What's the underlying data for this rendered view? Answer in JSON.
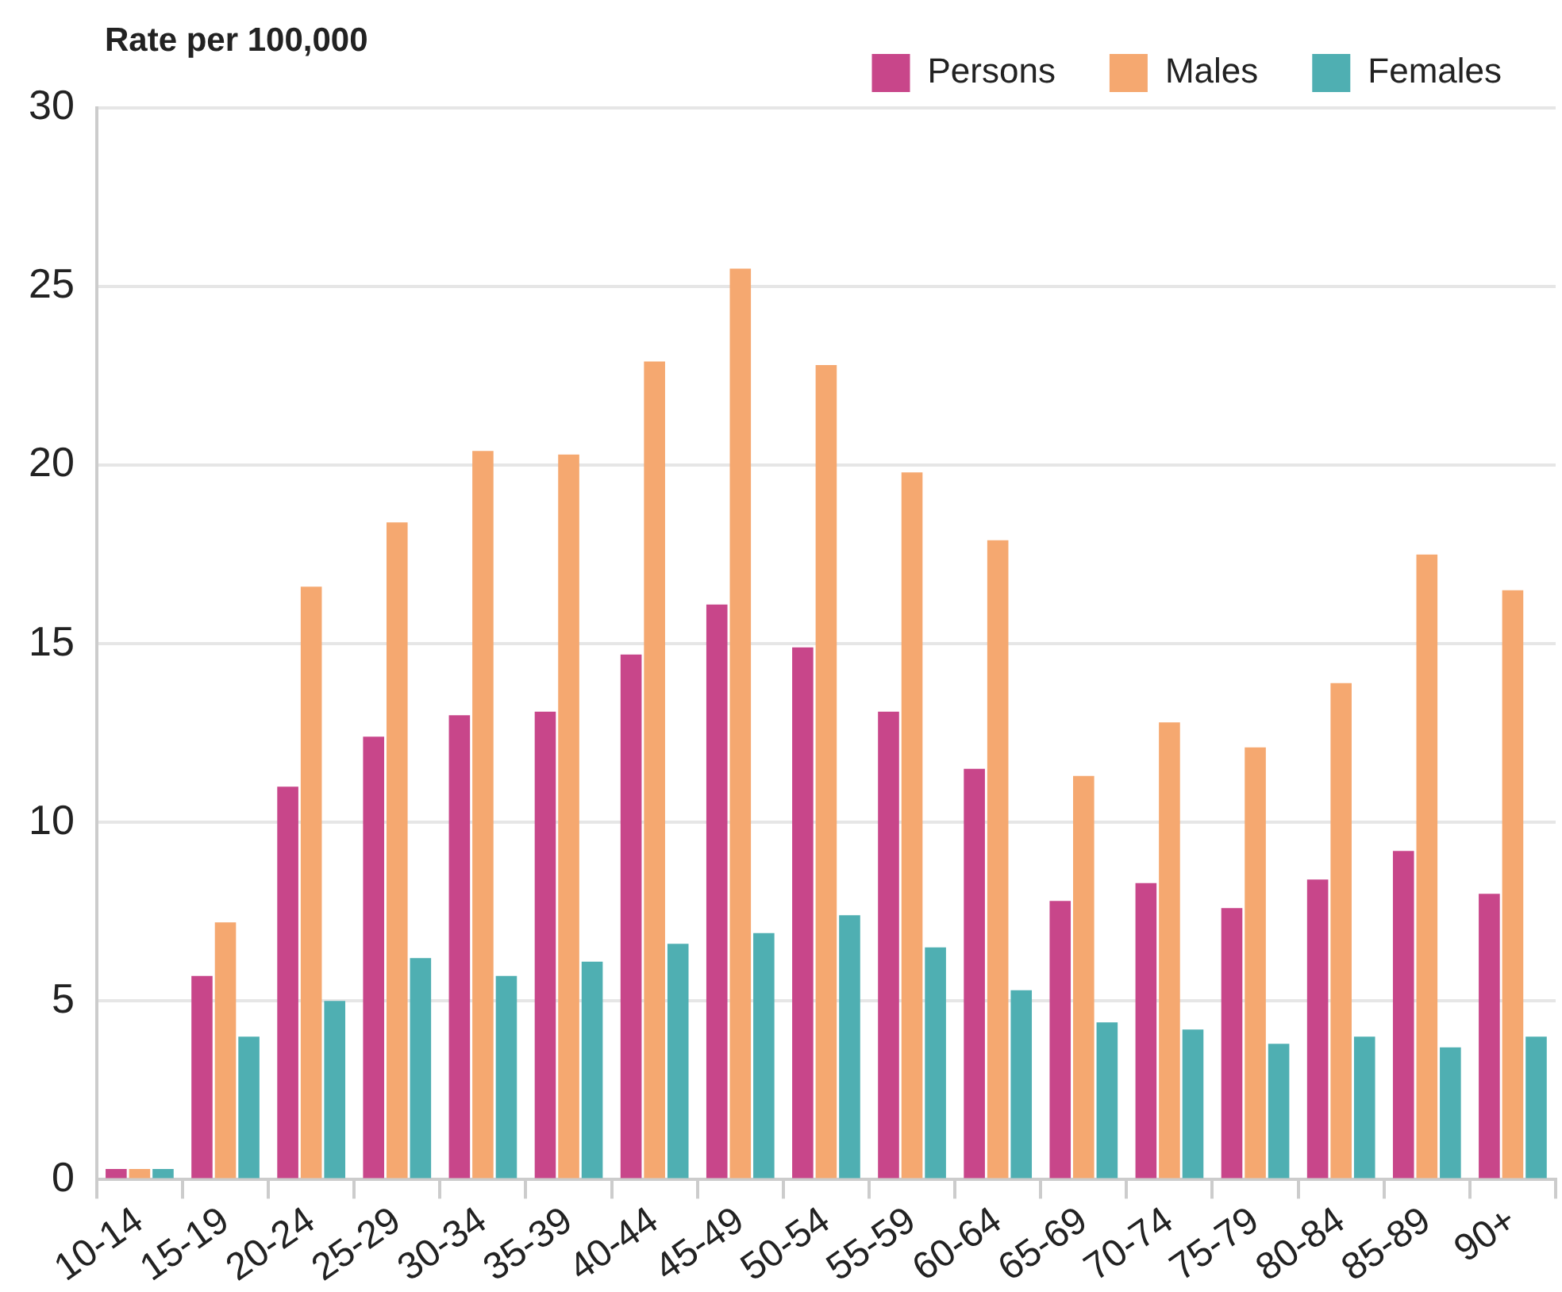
{
  "chart_data": {
    "type": "bar",
    "ylabel": "Rate per 100,000",
    "categories": [
      "10-14",
      "15-19",
      "20-24",
      "25-29",
      "30-34",
      "35-39",
      "40-44",
      "45-49",
      "50-54",
      "55-59",
      "60-64",
      "65-69",
      "70-74",
      "75-79",
      "80-84",
      "85-89",
      "90+"
    ],
    "series": [
      {
        "name": "Persons",
        "color": "#c8468a",
        "values": [
          0.3,
          5.7,
          11.0,
          12.4,
          13.0,
          13.1,
          14.7,
          16.1,
          14.9,
          13.1,
          11.5,
          7.8,
          8.3,
          7.6,
          8.4,
          9.2,
          8.0
        ]
      },
      {
        "name": "Males",
        "color": "#f5a870",
        "values": [
          0.3,
          7.2,
          16.6,
          18.4,
          20.4,
          20.3,
          22.9,
          25.5,
          22.8,
          19.8,
          17.9,
          11.3,
          12.8,
          12.1,
          13.9,
          17.5,
          16.5
        ]
      },
      {
        "name": "Females",
        "color": "#4fafb2",
        "values": [
          0.3,
          4.0,
          5.0,
          6.2,
          5.7,
          6.1,
          6.6,
          6.9,
          7.4,
          6.5,
          5.3,
          4.4,
          4.2,
          3.8,
          4.0,
          3.7,
          4.0
        ]
      }
    ],
    "ylim": [
      0,
      30
    ],
    "yticks": [
      0,
      5,
      10,
      15,
      20,
      25,
      30
    ],
    "grid": "y",
    "legend": "top right"
  }
}
